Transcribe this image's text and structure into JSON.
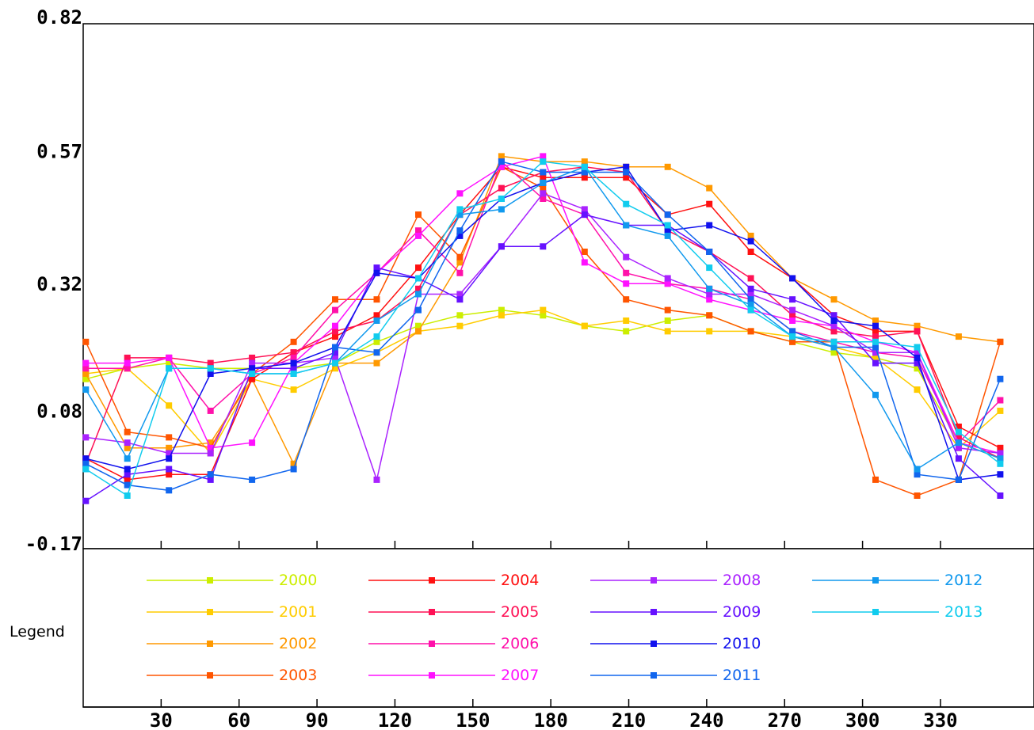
{
  "chart_data": {
    "type": "line",
    "title": "",
    "xlabel": "",
    "ylabel": "",
    "xlim": [
      0,
      366
    ],
    "ylim": [
      -0.17,
      0.82
    ],
    "yticks": [
      "0.82",
      "0.57",
      "0.32",
      "0.08",
      "-0.17"
    ],
    "yticks_values": [
      0.82,
      0.57,
      0.32,
      0.08,
      -0.17
    ],
    "xticks": [
      "30",
      "60",
      "90",
      "120",
      "150",
      "180",
      "210",
      "240",
      "270",
      "300",
      "330"
    ],
    "xticks_values": [
      30,
      60,
      90,
      120,
      150,
      180,
      210,
      240,
      270,
      300,
      330
    ],
    "grid": false,
    "legend_title": "Legend",
    "legend_position": "bottom",
    "x": [
      1,
      17,
      33,
      49,
      65,
      81,
      97,
      113,
      129,
      145,
      161,
      177,
      193,
      209,
      225,
      241,
      257,
      273,
      289,
      305,
      321,
      337,
      353
    ],
    "series": [
      {
        "name": "2000",
        "color": "#ccee00",
        "values": [
          0.15,
          0.17,
          0.18,
          0.17,
          0.17,
          0.17,
          0.18,
          0.22,
          0.25,
          0.27,
          0.28,
          0.27,
          0.25,
          0.24,
          0.26,
          0.27,
          0.24,
          0.22,
          0.2,
          0.19,
          0.17,
          0.03,
          0.0
        ]
      },
      {
        "name": "2001",
        "color": "#ffcc00",
        "values": [
          0.16,
          0.17,
          0.1,
          0.01,
          0.15,
          0.13,
          0.17,
          0.2,
          0.24,
          0.25,
          0.27,
          0.28,
          0.25,
          0.26,
          0.24,
          0.24,
          0.24,
          0.23,
          0.21,
          0.19,
          0.13,
          0.02,
          0.09
        ]
      },
      {
        "name": "2002",
        "color": "#ff9900",
        "values": [
          0.16,
          0.02,
          0.02,
          0.03,
          0.15,
          -0.01,
          0.18,
          0.18,
          0.24,
          0.37,
          0.57,
          0.56,
          0.56,
          0.55,
          0.55,
          0.51,
          0.42,
          0.34,
          0.3,
          0.26,
          0.25,
          0.23,
          0.22
        ]
      },
      {
        "name": "2003",
        "color": "#ff5500",
        "values": [
          0.22,
          0.05,
          0.04,
          0.02,
          0.16,
          0.22,
          0.3,
          0.3,
          0.46,
          0.38,
          0.55,
          0.51,
          0.39,
          0.3,
          0.28,
          0.27,
          0.24,
          0.22,
          0.22,
          -0.04,
          -0.07,
          -0.04,
          0.22
        ]
      },
      {
        "name": "2004",
        "color": "#ff1111",
        "values": [
          0.0,
          -0.04,
          -0.03,
          -0.03,
          0.15,
          0.2,
          0.23,
          0.27,
          0.36,
          0.46,
          0.55,
          0.53,
          0.53,
          0.53,
          0.46,
          0.48,
          0.39,
          0.34,
          0.27,
          0.24,
          0.24,
          0.06,
          0.02
        ]
      },
      {
        "name": "2005",
        "color": "#ff1155",
        "values": [
          -0.01,
          0.19,
          0.19,
          0.18,
          0.19,
          0.2,
          0.24,
          0.26,
          0.32,
          0.46,
          0.51,
          0.54,
          0.55,
          0.54,
          0.43,
          0.39,
          0.34,
          0.27,
          0.24,
          0.23,
          0.24,
          0.04,
          0.0
        ]
      },
      {
        "name": "2006",
        "color": "#ff11aa",
        "values": [
          0.17,
          0.17,
          0.19,
          0.09,
          0.16,
          0.19,
          0.28,
          0.35,
          0.43,
          0.35,
          0.56,
          0.49,
          0.46,
          0.35,
          0.33,
          0.32,
          0.3,
          0.24,
          0.22,
          0.2,
          0.19,
          0.03,
          0.11
        ]
      },
      {
        "name": "2007",
        "color": "#ff11ff",
        "values": [
          0.18,
          0.18,
          0.19,
          0.02,
          0.03,
          0.18,
          0.25,
          0.35,
          0.42,
          0.5,
          0.55,
          0.57,
          0.37,
          0.33,
          0.33,
          0.3,
          0.28,
          0.26,
          0.25,
          0.22,
          0.2,
          0.03,
          0.01
        ]
      },
      {
        "name": "2008",
        "color": "#aa22ff",
        "values": [
          0.04,
          0.03,
          0.01,
          0.01,
          0.18,
          0.18,
          0.19,
          -0.04,
          0.31,
          0.31,
          0.4,
          0.5,
          0.47,
          0.38,
          0.34,
          0.31,
          0.31,
          0.28,
          0.25,
          0.2,
          0.2,
          0.02,
          0.01
        ]
      },
      {
        "name": "2009",
        "color": "#6611ff",
        "values": [
          -0.08,
          -0.03,
          -0.02,
          -0.04,
          0.17,
          0.17,
          0.2,
          0.36,
          0.34,
          0.3,
          0.4,
          0.4,
          0.46,
          0.44,
          0.44,
          0.39,
          0.32,
          0.3,
          0.27,
          0.18,
          0.18,
          0.0,
          -0.07
        ]
      },
      {
        "name": "2010",
        "color": "#1111ee",
        "values": [
          0.0,
          -0.02,
          0.0,
          0.16,
          0.17,
          0.18,
          0.21,
          0.35,
          0.34,
          0.42,
          0.49,
          0.52,
          0.54,
          0.55,
          0.43,
          0.44,
          0.41,
          0.34,
          0.26,
          0.25,
          0.19,
          -0.04,
          -0.03
        ]
      },
      {
        "name": "2011",
        "color": "#1166ee",
        "values": [
          -0.01,
          -0.05,
          -0.06,
          -0.03,
          -0.04,
          -0.02,
          0.21,
          0.2,
          0.28,
          0.43,
          0.56,
          0.54,
          0.54,
          0.54,
          0.46,
          0.39,
          0.3,
          0.24,
          0.21,
          0.21,
          -0.03,
          -0.04,
          0.15
        ]
      },
      {
        "name": "2012",
        "color": "#1199ee",
        "values": [
          0.13,
          0.0,
          0.17,
          0.17,
          0.16,
          0.16,
          0.18,
          0.26,
          0.31,
          0.46,
          0.47,
          0.52,
          0.55,
          0.44,
          0.42,
          0.32,
          0.29,
          0.23,
          0.21,
          0.12,
          -0.02,
          0.03,
          0.0
        ]
      },
      {
        "name": "2013",
        "color": "#11ccee",
        "values": [
          -0.02,
          -0.07,
          0.17,
          0.17,
          0.16,
          0.16,
          0.18,
          0.23,
          0.34,
          0.47,
          0.49,
          0.56,
          0.55,
          0.48,
          0.44,
          0.36,
          0.28,
          0.23,
          0.22,
          0.22,
          0.21,
          0.05,
          -0.01
        ]
      }
    ]
  }
}
